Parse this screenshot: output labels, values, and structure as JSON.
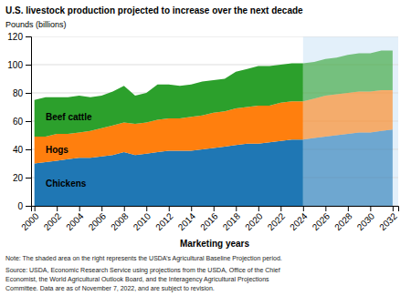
{
  "chart_data": {
    "type": "area",
    "stacked": true,
    "grid": true,
    "title": "U.S. livestock production projected to increase over the next decade",
    "y_label": "Pounds (billions)",
    "x_label": "Marketing years",
    "annotations": [
      "Note: The shaded area on the right represents the USDA’s Agricultural Baseline Projection period.",
      "Source: USDA, Economic Research Service using projections from the USDA, Office of the Chief",
      "Economist, the World Agricultural Outlook Board, and the Interagency Agricultural Projections",
      "Committee. Data are as of November 7, 2022, and are subject to revision."
    ],
    "x": [
      2000,
      2001,
      2002,
      2003,
      2004,
      2005,
      2006,
      2007,
      2008,
      2009,
      2010,
      2011,
      2012,
      2013,
      2014,
      2015,
      2016,
      2017,
      2018,
      2019,
      2020,
      2021,
      2022,
      2023,
      2024,
      2025,
      2026,
      2027,
      2028,
      2029,
      2030,
      2031,
      2032
    ],
    "series": [
      {
        "name": "Chickens",
        "values": [
          30,
          31,
          32,
          33,
          34,
          34,
          35,
          36,
          38,
          36,
          37,
          38,
          39,
          39,
          39,
          40,
          41,
          42,
          43,
          44,
          44,
          45,
          46,
          47,
          47,
          48,
          49,
          50,
          51,
          52,
          52,
          53,
          54
        ]
      },
      {
        "name": "Hogs",
        "values": [
          19,
          18,
          19,
          18,
          18,
          19,
          20,
          21,
          21,
          22,
          22,
          23,
          23,
          23,
          24,
          24,
          25,
          25,
          26,
          26,
          27,
          26,
          27,
          27,
          27,
          28,
          29,
          29,
          29,
          29,
          29,
          29,
          28
        ]
      },
      {
        "name": "Beef cattle",
        "values": [
          26,
          28,
          26,
          26,
          26,
          24,
          23,
          24,
          26,
          20,
          21,
          25,
          24,
          23,
          23,
          24,
          23,
          23,
          26,
          27,
          28,
          28,
          27,
          27,
          27,
          26,
          26,
          26,
          27,
          27,
          27,
          28,
          28
        ]
      }
    ],
    "projection_start": 2024,
    "xlim": [
      1999.7,
      2032.5
    ],
    "xticks": [
      2000,
      2002,
      2004,
      2006,
      2008,
      2010,
      2012,
      2014,
      2016,
      2018,
      2020,
      2022,
      2024,
      2026,
      2028,
      2030,
      2032
    ],
    "ylim": [
      0,
      120
    ],
    "yticks": [
      0,
      20,
      40,
      60,
      80,
      100,
      120
    ]
  }
}
